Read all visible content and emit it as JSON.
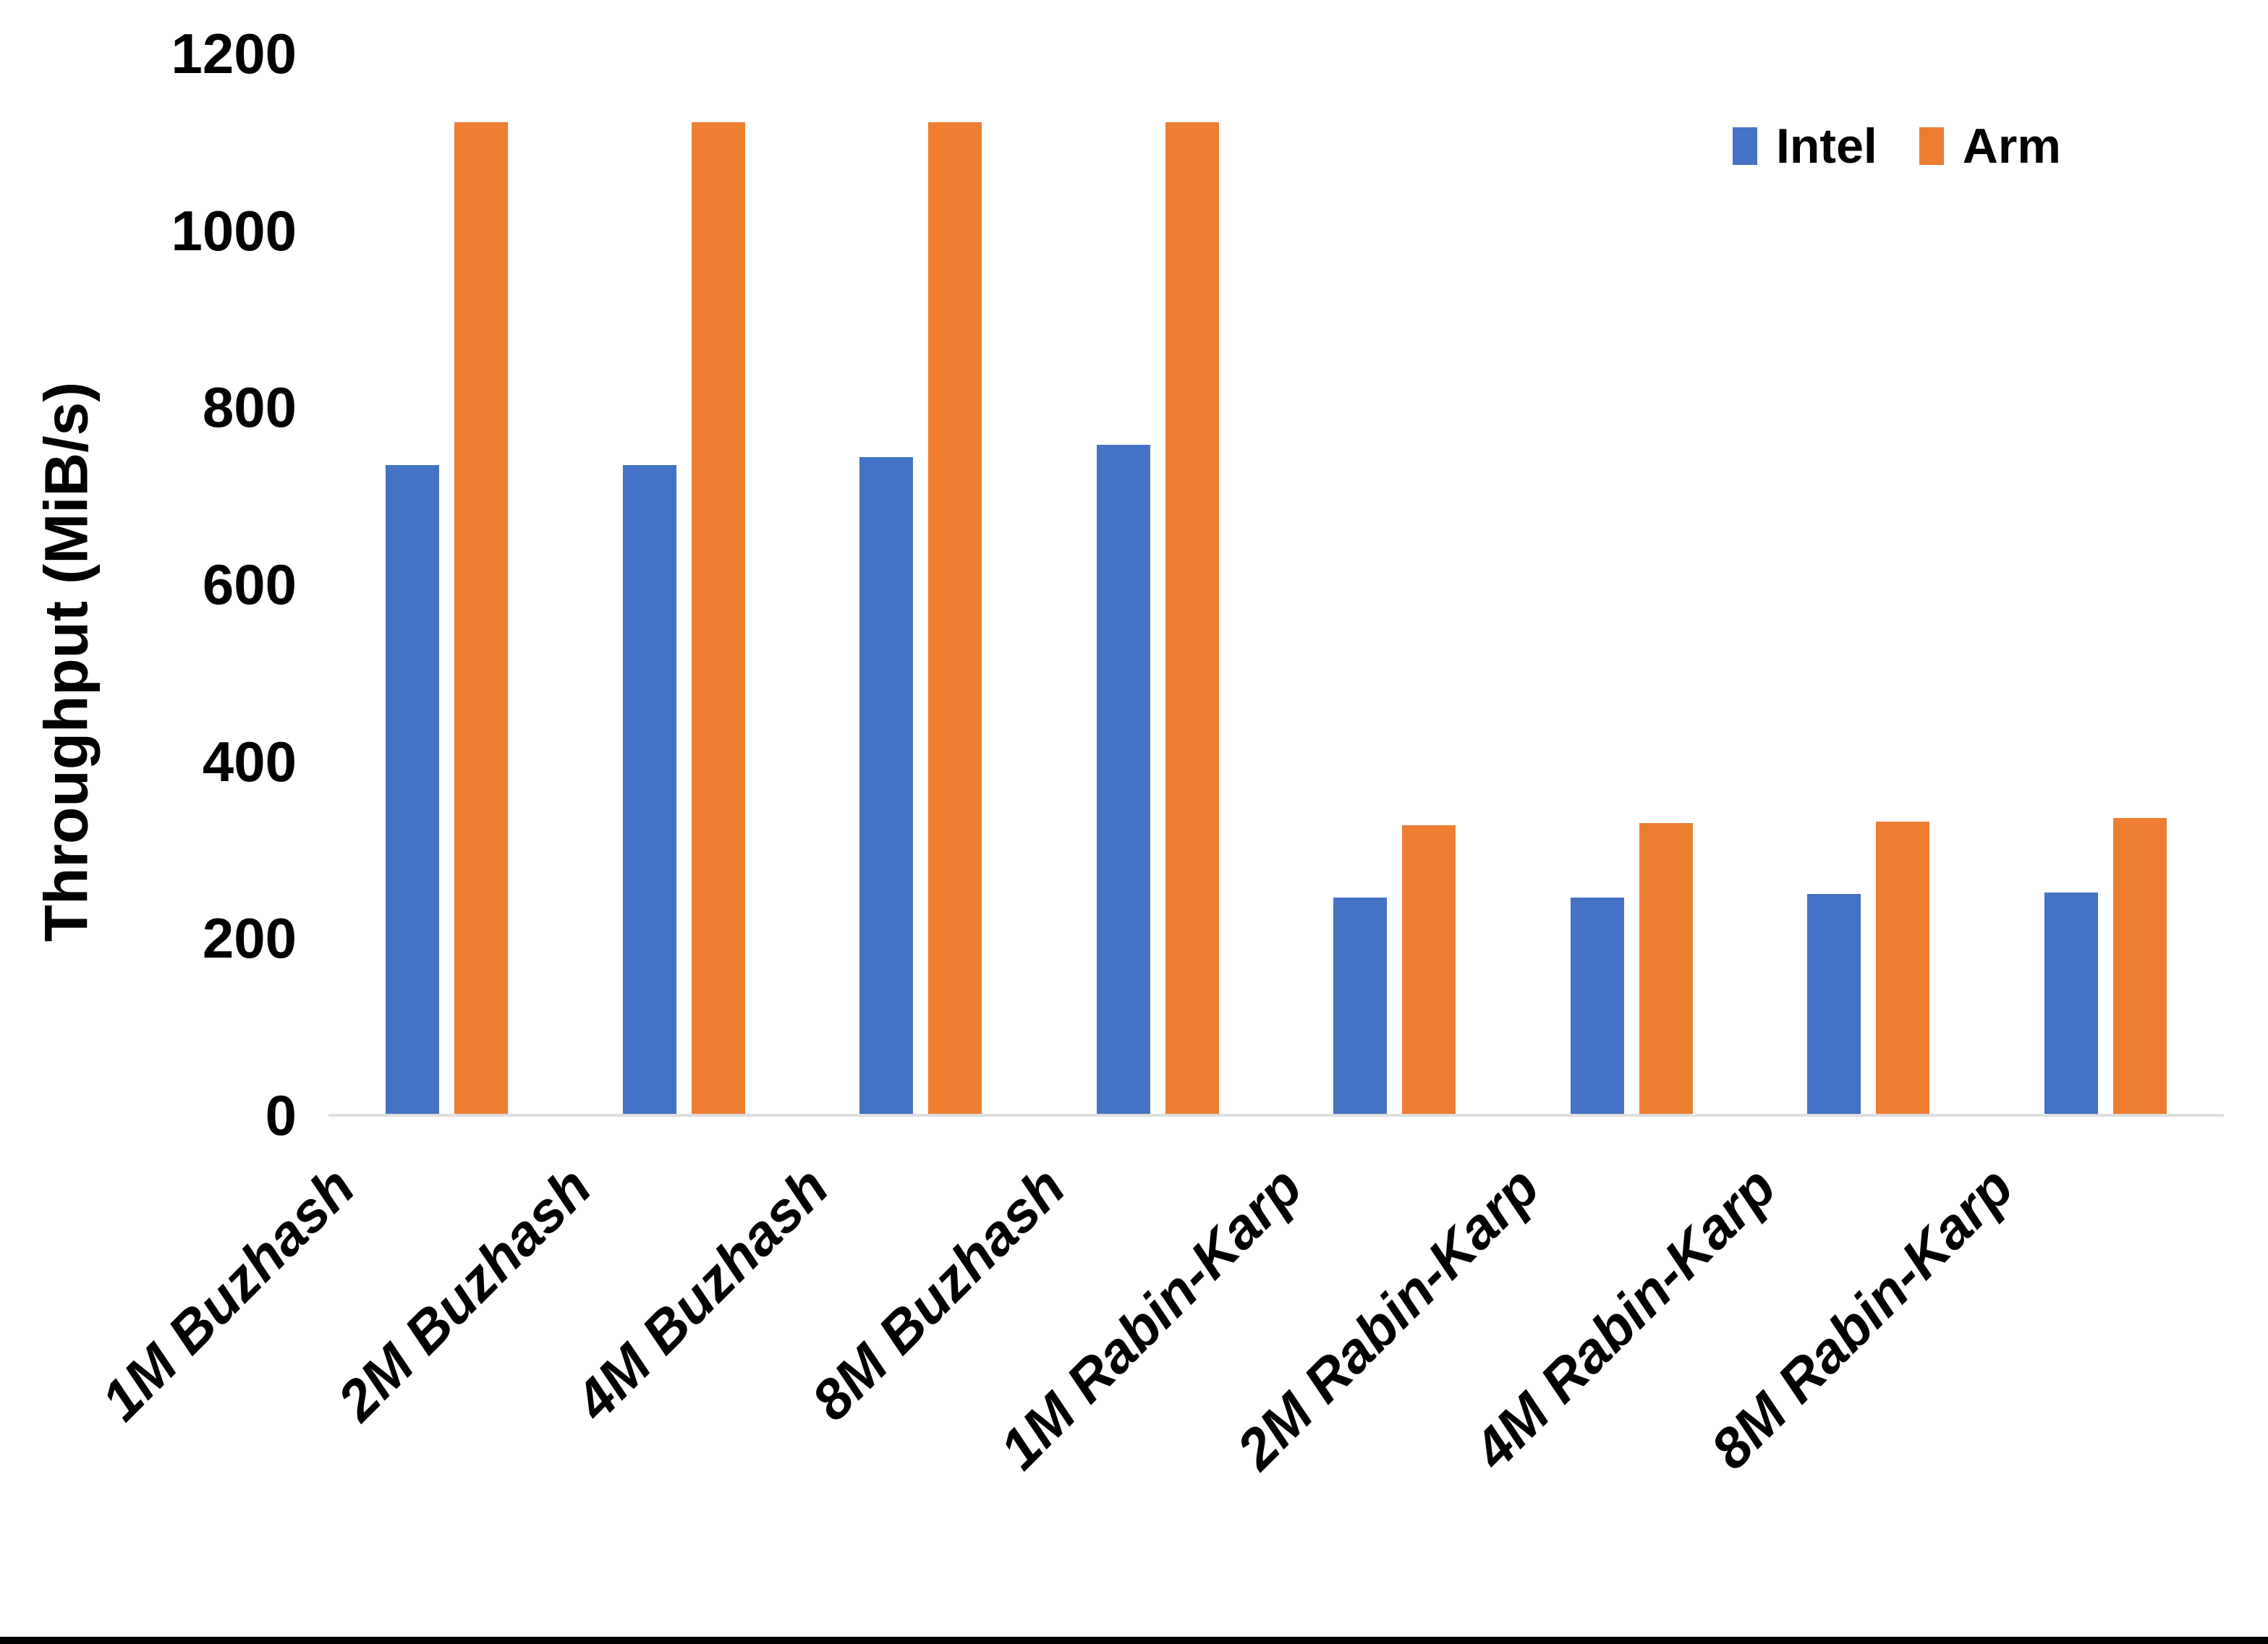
{
  "chart_data": {
    "type": "bar",
    "title": "",
    "categories": [
      "1M Buzhash",
      "2M Buzhash",
      "4M Buzhash",
      "8M Buzhash",
      "1M Rabin-Karp",
      "2M Rabin-Karp",
      "4M Rabin-Karp",
      "8M Rabin-Karp"
    ],
    "series": [
      {
        "name": "Intel",
        "color": "#4472C4",
        "values": [
          735,
          735,
          744,
          758,
          246,
          246,
          250,
          252
        ]
      },
      {
        "name": "Arm",
        "color": "#ED7D31",
        "values": [
          1122,
          1122,
          1122,
          1122,
          328,
          330,
          332,
          336
        ]
      }
    ],
    "xlabel": "",
    "ylabel": "Throughput (MiB/s)",
    "ylim": [
      0,
      1200
    ],
    "yticks": [
      0,
      200,
      400,
      600,
      800,
      1000,
      1200
    ],
    "grid": false,
    "legend_position": "top-right"
  },
  "colors": {
    "axis_line": "#DEDEDE",
    "text": "#000000",
    "bottom_strip": "#000000"
  }
}
